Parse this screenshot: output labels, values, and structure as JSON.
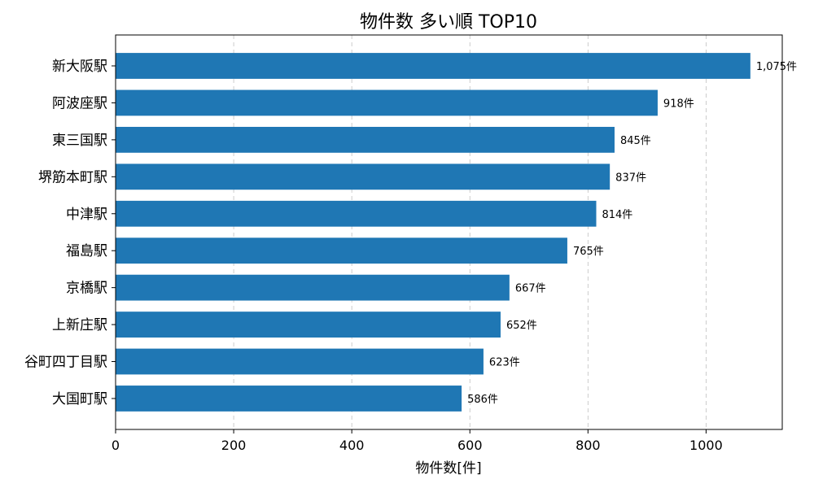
{
  "chart_data": {
    "type": "bar",
    "orientation": "horizontal",
    "title": "物件数 多い順 TOP10",
    "xlabel": "物件数[件]",
    "ylabel": "",
    "categories": [
      "新大阪駅",
      "阿波座駅",
      "東三国駅",
      "堺筋本町駅",
      "中津駅",
      "福島駅",
      "京橋駅",
      "上新庄駅",
      "谷町四丁目駅",
      "大国町駅"
    ],
    "values": [
      1075,
      918,
      845,
      837,
      814,
      765,
      667,
      652,
      623,
      586
    ],
    "value_labels": [
      "1,075件",
      "918件",
      "845件",
      "837件",
      "814件",
      "765件",
      "667件",
      "652件",
      "623件",
      "586件"
    ],
    "xticks": [
      0,
      200,
      400,
      600,
      800,
      1000
    ],
    "xlim": [
      0,
      1129
    ],
    "grid": "x, dashed",
    "bar_color": "#1f77b4"
  }
}
